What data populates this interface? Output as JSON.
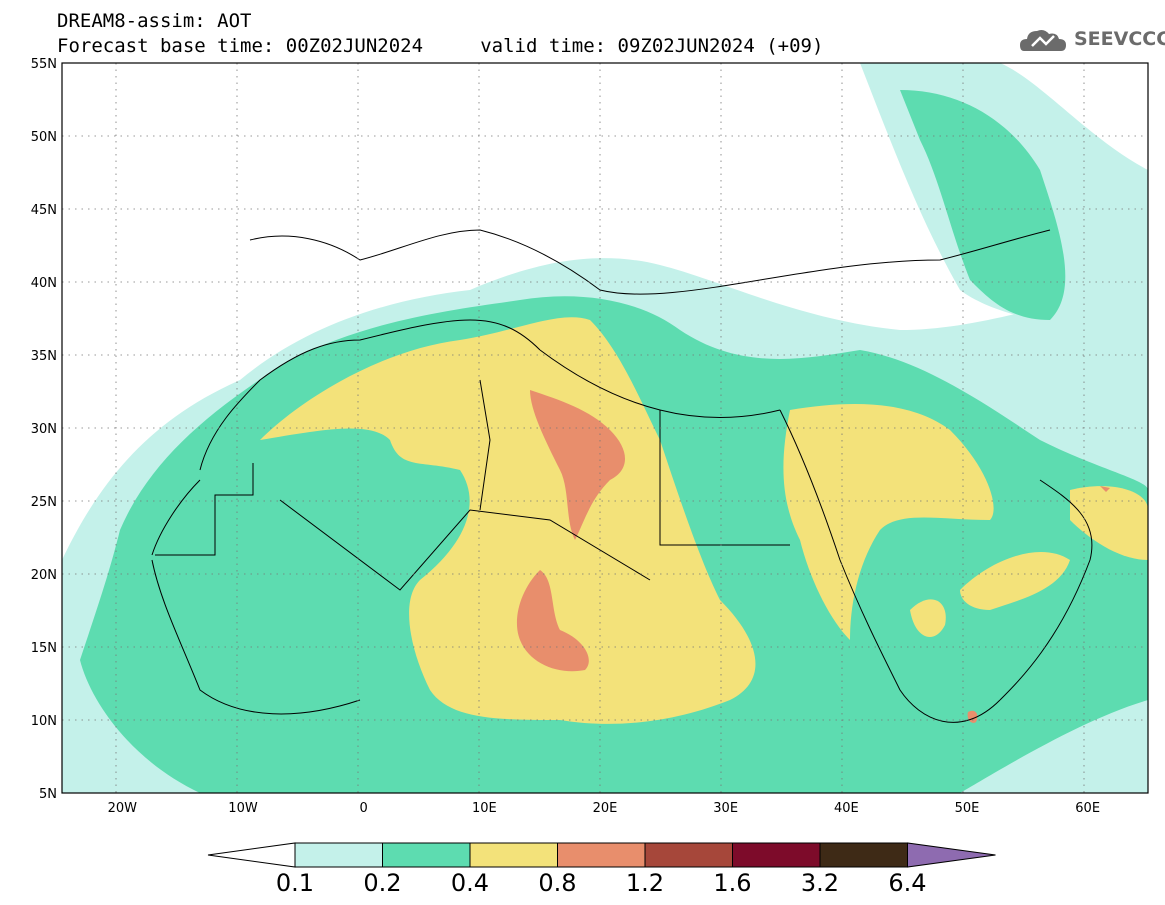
{
  "header": {
    "line1": "DREAM8-assim: AOT",
    "line2": "Forecast base time: 00Z02JUN2024     valid time: 09Z02JUN2024 (+09)"
  },
  "logo": {
    "text": "SEEVCCC",
    "icon": "cloud-logo-icon"
  },
  "axes": {
    "lat_labels": [
      "55N",
      "50N",
      "45N",
      "40N",
      "35N",
      "30N",
      "25N",
      "20N",
      "15N",
      "10N",
      "5N"
    ],
    "lon_labels": [
      "20W",
      "10W",
      "0",
      "10E",
      "20E",
      "30E",
      "40E",
      "50E",
      "60E"
    ],
    "lat_range": [
      5,
      55
    ],
    "lon_range": [
      -25,
      65
    ],
    "grid": "dotted"
  },
  "colorbar": {
    "labels": [
      "0.1",
      "0.2",
      "0.4",
      "0.8",
      "1.2",
      "1.6",
      "3.2",
      "6.4"
    ],
    "colors": [
      "#ffffff",
      "#c4f1ea",
      "#5ddcb0",
      "#f3e27a",
      "#e88e6c",
      "#a6473a",
      "#7d0b2a",
      "#3e2a16",
      "#8e6bb0"
    ]
  },
  "field": {
    "name": "AOT",
    "palette_low_to_high": [
      "#c4f1ea",
      "#5ddcb0",
      "#f3e27a",
      "#e88e6c"
    ]
  }
}
